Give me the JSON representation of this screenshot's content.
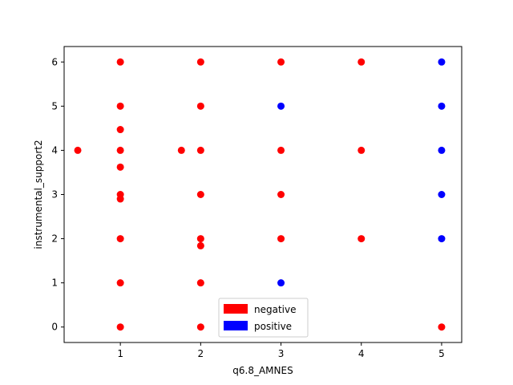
{
  "chart_data": {
    "type": "scatter",
    "xlabel": "q6.8_AMNES",
    "ylabel": "instrumental_support2",
    "xlim": [
      0.3,
      5.25
    ],
    "ylim": [
      -0.35,
      6.35
    ],
    "xticks": [
      1,
      2,
      3,
      4,
      5
    ],
    "yticks": [
      0,
      1,
      2,
      3,
      4,
      5,
      6
    ],
    "grid": false,
    "legend_position": "bottom-center",
    "series": [
      {
        "name": "negative",
        "color": "#ff0000",
        "points": [
          [
            1,
            6
          ],
          [
            1,
            5
          ],
          [
            1,
            4.47
          ],
          [
            1,
            4
          ],
          [
            1,
            3.62
          ],
          [
            1,
            3
          ],
          [
            1,
            2.9
          ],
          [
            1,
            2
          ],
          [
            1,
            1
          ],
          [
            1,
            0
          ],
          [
            0.47,
            4
          ],
          [
            1.76,
            4
          ],
          [
            2,
            6
          ],
          [
            2,
            5
          ],
          [
            2,
            4
          ],
          [
            2,
            3
          ],
          [
            2,
            2
          ],
          [
            2,
            1.84
          ],
          [
            2,
            1
          ],
          [
            2,
            0
          ],
          [
            3,
            6
          ],
          [
            3,
            4
          ],
          [
            3,
            3
          ],
          [
            3,
            2
          ],
          [
            4,
            6
          ],
          [
            4,
            4
          ],
          [
            4,
            2
          ],
          [
            5,
            0
          ]
        ]
      },
      {
        "name": "positive",
        "color": "#0000ff",
        "points": [
          [
            3,
            5
          ],
          [
            3,
            1
          ],
          [
            5,
            6
          ],
          [
            5,
            5
          ],
          [
            5,
            4
          ],
          [
            5,
            3
          ],
          [
            5,
            2
          ]
        ]
      }
    ]
  }
}
